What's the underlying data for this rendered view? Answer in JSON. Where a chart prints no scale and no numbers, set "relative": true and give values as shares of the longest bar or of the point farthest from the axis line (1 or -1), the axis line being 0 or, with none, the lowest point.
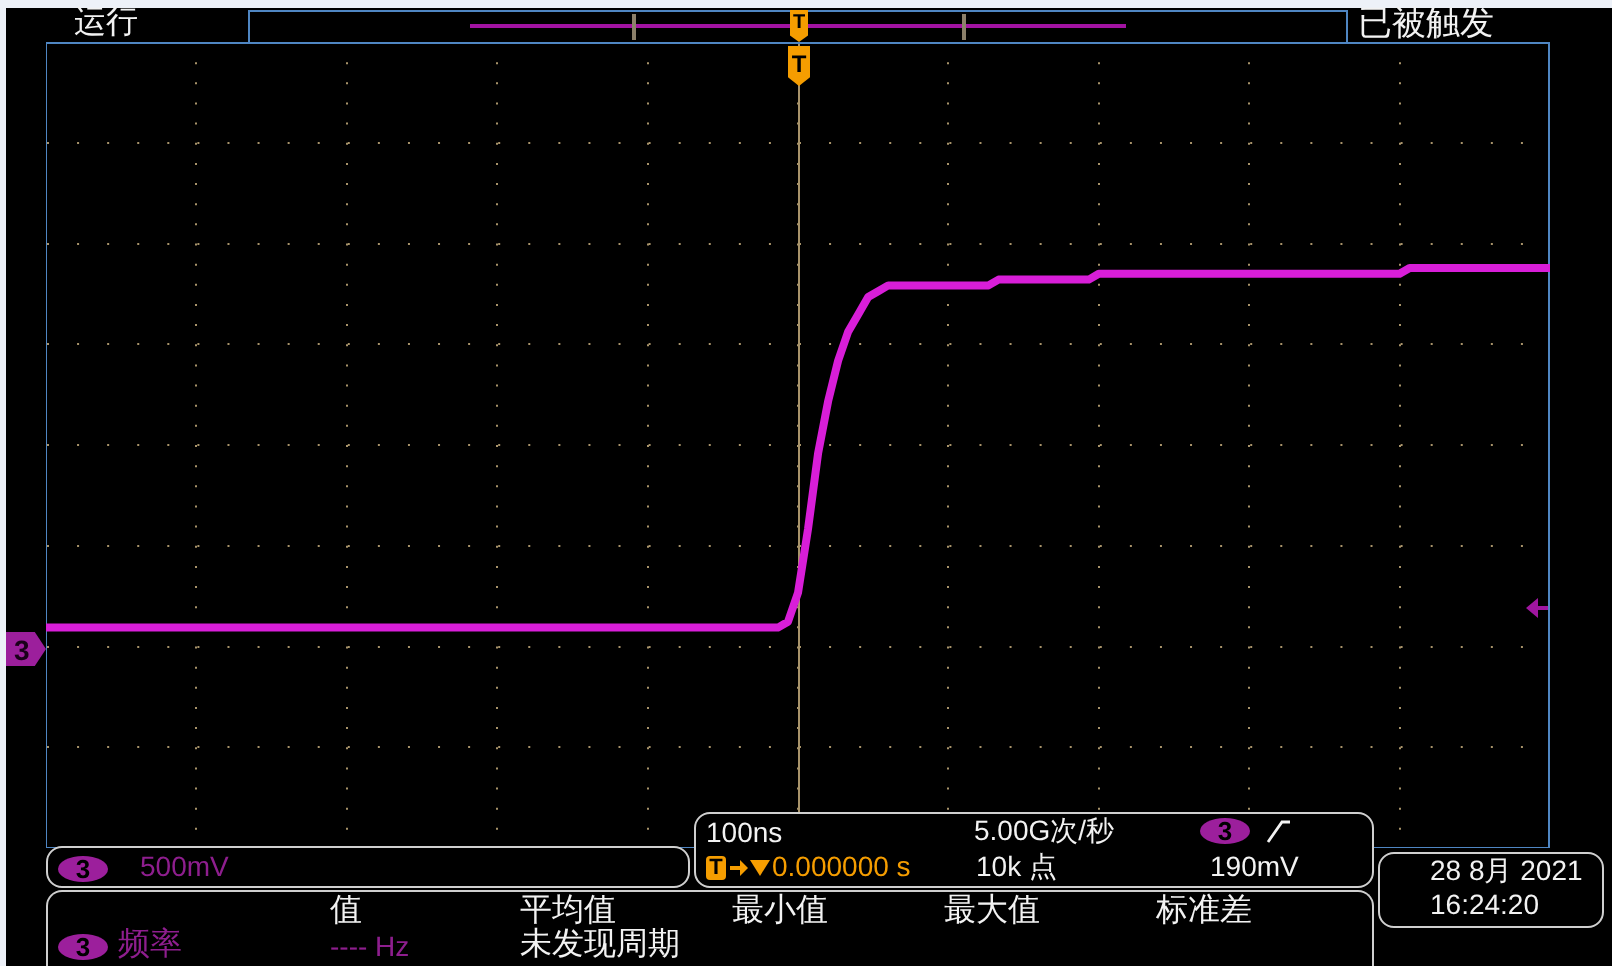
{
  "chart_data": {
    "type": "line",
    "relative": true,
    "grid": true,
    "color": "#d81ed8",
    "categories": [
      null,
      null,
      null,
      null,
      null,
      null,
      null,
      null,
      null,
      null,
      null,
      null,
      null,
      null,
      null,
      null,
      null,
      null,
      null,
      null,
      null,
      null,
      null,
      null,
      null,
      null,
      null,
      null,
      null,
      null,
      null,
      null,
      null,
      null,
      null,
      null,
      null,
      null,
      null,
      null,
      null,
      null,
      null,
      null,
      null,
      null,
      null,
      null,
      null,
      null,
      null,
      null,
      null,
      null,
      null,
      null,
      null,
      null,
      null,
      null,
      null,
      null,
      null,
      null,
      null,
      null,
      null,
      null,
      null,
      null,
      null,
      null,
      null,
      null,
      null,
      null,
      null,
      null,
      null,
      null,
      null,
      null,
      null,
      null,
      null,
      null,
      null,
      null,
      null,
      null,
      null,
      null,
      null,
      null,
      null,
      null,
      null,
      null,
      null,
      null,
      null,
      null,
      null,
      null,
      null,
      null,
      null,
      null,
      null,
      null,
      null,
      null,
      null,
      null,
      null,
      null,
      null,
      null,
      null,
      null,
      null,
      null,
      null,
      null,
      null,
      null,
      null,
      null,
      null,
      null,
      null,
      null,
      null,
      null,
      null,
      null,
      null,
      null,
      null,
      null,
      null,
      null,
      null,
      null,
      null,
      null,
      null,
      null,
      null,
      null,
      null
    ],
    "values": [
      0.38,
      0.38,
      0.38,
      0.38,
      0.38,
      0.38,
      0.38,
      0.38,
      0.38,
      0.38,
      0.38,
      0.38,
      0.38,
      0.38,
      0.38,
      0.38,
      0.38,
      0.38,
      0.38,
      0.38,
      0.38,
      0.38,
      0.38,
      0.38,
      0.38,
      0.38,
      0.38,
      0.38,
      0.38,
      0.38,
      0.38,
      0.38,
      0.38,
      0.38,
      0.38,
      0.38,
      0.38,
      0.38,
      0.38,
      0.38,
      0.38,
      0.38,
      0.38,
      0.38,
      0.38,
      0.38,
      0.38,
      0.38,
      0.38,
      0.38,
      0.38,
      0.38,
      0.38,
      0.38,
      0.38,
      0.38,
      0.38,
      0.38,
      0.38,
      0.38,
      0.38,
      0.38,
      0.38,
      0.38,
      0.38,
      0.38,
      0.38,
      0.38,
      0.38,
      0.38,
      0.38,
      0.38,
      0.38,
      0.38,
      0.39,
      0.44,
      0.55,
      0.68,
      0.77,
      0.84,
      0.89,
      0.92,
      0.95,
      0.96,
      0.97,
      0.97,
      0.97,
      0.97,
      0.97,
      0.97,
      0.97,
      0.97,
      0.97,
      0.97,
      0.97,
      0.98,
      0.98,
      0.98,
      0.98,
      0.98,
      0.98,
      0.98,
      0.98,
      0.98,
      0.98,
      0.99,
      0.99,
      0.99,
      0.99,
      0.99,
      0.99,
      0.99,
      0.99,
      0.99,
      0.99,
      0.99,
      0.99,
      0.99,
      0.99,
      0.99,
      0.99,
      0.99,
      0.99,
      0.99,
      0.99,
      0.99,
      0.99,
      0.99,
      0.99,
      0.99,
      0.99,
      0.99,
      0.99,
      0.99,
      0.99,
      0.99,
      1,
      1,
      1,
      1,
      1,
      1,
      1,
      1,
      1,
      1,
      1,
      1,
      1,
      1,
      1
    ],
    "annotations": [
      "运行",
      "已被触发",
      "T",
      "T",
      "3",
      "3",
      "500mV",
      "100ns",
      "5.00G次/秒",
      "3",
      "T",
      "0.000000 s",
      "10k 点",
      "190mV",
      "28 8月 2021",
      "16:24:20",
      "值",
      "平均值",
      "最小值",
      "最大值",
      "标准差",
      "3",
      "频率",
      "---- Hz",
      "未发现周期"
    ]
  }
}
